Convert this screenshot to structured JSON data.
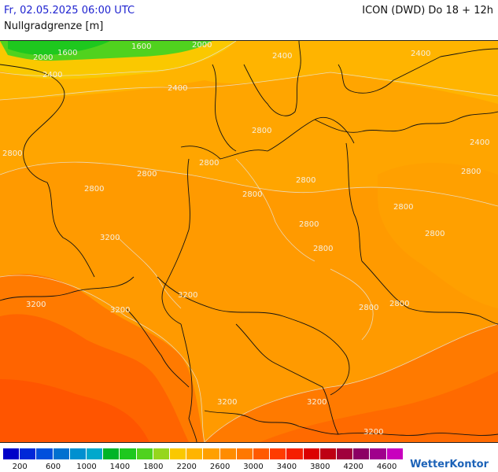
{
  "header": {
    "datetime": "Fr, 02.05.2025 06:00 UTC",
    "model": "ICON (DWD) Do 18 + 12h",
    "parameter": "Nullgradgrenze [m]"
  },
  "map": {
    "contour_labels": [
      {
        "text": "1600"
      },
      {
        "text": "2000"
      },
      {
        "text": "1600"
      },
      {
        "text": "2000"
      },
      {
        "text": "2400"
      },
      {
        "text": "2400"
      },
      {
        "text": "2400"
      },
      {
        "text": "2400"
      },
      {
        "text": "2800"
      },
      {
        "text": "2800"
      },
      {
        "text": "2800"
      },
      {
        "text": "2800"
      },
      {
        "text": "2800"
      },
      {
        "text": "2800"
      },
      {
        "text": "2400"
      },
      {
        "text": "2800"
      },
      {
        "text": "2800"
      },
      {
        "text": "2800"
      },
      {
        "text": "2800"
      },
      {
        "text": "2800"
      },
      {
        "text": "2800"
      },
      {
        "text": "3200"
      },
      {
        "text": "3200"
      },
      {
        "text": "3200"
      },
      {
        "text": "3200"
      },
      {
        "text": "2800"
      },
      {
        "text": "2800"
      },
      {
        "text": "3200"
      },
      {
        "text": "3200"
      },
      {
        "text": "3200"
      }
    ]
  },
  "legend": {
    "colors": [
      "#0000c8",
      "#0028d8",
      "#0050dc",
      "#0070d0",
      "#0090d0",
      "#00a8cc",
      "#00b428",
      "#1ec81e",
      "#50d21e",
      "#96d61e",
      "#fac800",
      "#ffb400",
      "#ffa000",
      "#ff8c00",
      "#ff7800",
      "#ff5a00",
      "#ff3c00",
      "#f51e00",
      "#dc0000",
      "#be0014",
      "#a0003c",
      "#8c0064",
      "#a0008c",
      "#c800be"
    ],
    "tick_labels": [
      "200",
      "600",
      "1000",
      "1400",
      "1800",
      "2200",
      "2600",
      "3000",
      "3400",
      "3800",
      "4200",
      "4600"
    ]
  },
  "branding": {
    "name": "WetterKontor",
    "icon": "sun-icon"
  }
}
